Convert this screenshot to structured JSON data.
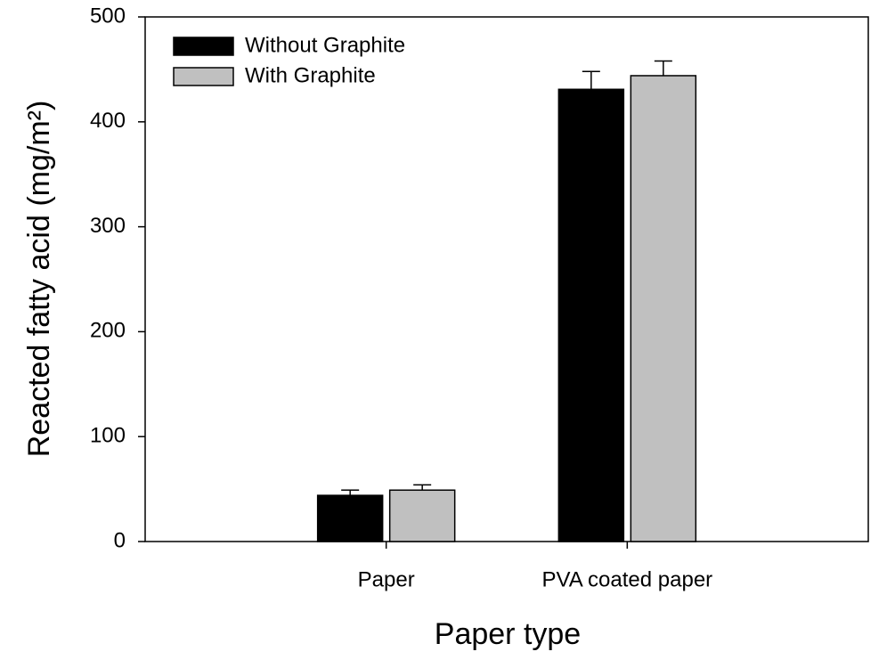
{
  "chart_data": {
    "type": "bar",
    "xlabel": "Paper type",
    "ylabel": "Reacted fatty acid (mg/m²)",
    "categories": [
      "Paper",
      "PVA coated paper"
    ],
    "series": [
      {
        "name": "Without Graphite",
        "color": "#000000",
        "values": [
          44,
          431
        ],
        "errors": [
          5,
          17
        ]
      },
      {
        "name": "With Graphite",
        "color": "#c0c0c0",
        "values": [
          49,
          444
        ],
        "errors": [
          5,
          14
        ]
      }
    ],
    "ylim": [
      0,
      500
    ],
    "yticks": [
      0,
      100,
      200,
      300,
      400,
      500
    ],
    "grid": false,
    "legend": "upper left"
  }
}
